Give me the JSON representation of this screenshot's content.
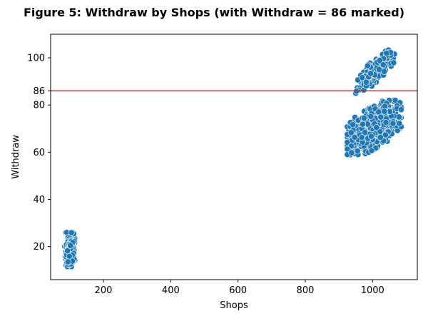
{
  "chart_data": {
    "type": "scatter",
    "title": "Figure 5: Withdraw by Shops (with Withdraw = 86 marked)",
    "xlabel": "Shops",
    "ylabel": "Withdraw",
    "xlim": [
      43,
      1133
    ],
    "ylim": [
      6,
      110
    ],
    "xticks": [
      200,
      400,
      600,
      800,
      1000
    ],
    "yticks": [
      20,
      40,
      60,
      80,
      86,
      100
    ],
    "grid": false,
    "legend": "none",
    "colors": {
      "points": "#1f77b4",
      "point_edge": "#ffffff",
      "reference_line": "#d62728"
    },
    "reference_line": {
      "orientation": "horizontal",
      "y": 86
    },
    "clusters": [
      {
        "x_range": [
          85,
          115
        ],
        "y_range": [
          11,
          26
        ],
        "count": 220,
        "trend": 0
      },
      {
        "x_range": [
          925,
          1085
        ],
        "y_range": [
          59,
          82
        ],
        "count": 650,
        "trend": 0.55
      },
      {
        "x_range": [
          950,
          1065
        ],
        "y_range": [
          85,
          104
        ],
        "count": 220,
        "trend": 0.8
      }
    ]
  }
}
